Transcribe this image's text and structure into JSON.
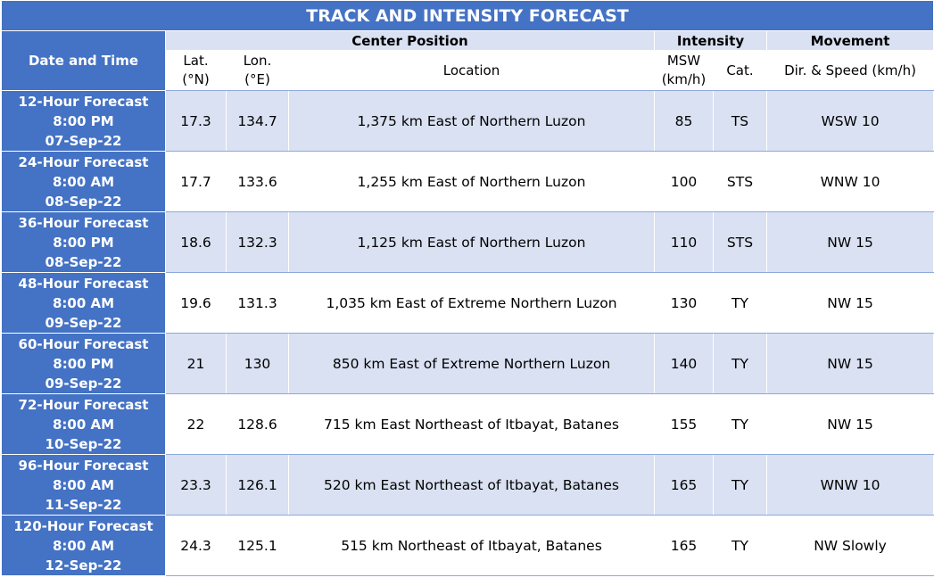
{
  "title": "TRACK AND INTENSITY FORECAST",
  "headers": {
    "date_time": "Date and Time",
    "center_position": "Center Position",
    "intensity": "Intensity",
    "movement": "Movement",
    "lat_1": "Lat.",
    "lat_2": "(°N)",
    "lon_1": "Lon.",
    "lon_2": "(°E)",
    "location": "Location",
    "msw_1": "MSW",
    "msw_2": "(km/h)",
    "cat": "Cat.",
    "dir_speed": "Dir. & Speed (km/h)"
  },
  "rows": [
    {
      "period": "12-Hour Forecast",
      "time": "8:00 PM",
      "date": "07-Sep-22",
      "lat": "17.3",
      "lon": "134.7",
      "location": "1,375 km East of Northern Luzon",
      "msw": "85",
      "cat": "TS",
      "movement": "WSW 10"
    },
    {
      "period": "24-Hour Forecast",
      "time": "8:00 AM",
      "date": "08-Sep-22",
      "lat": "17.7",
      "lon": "133.6",
      "location": "1,255 km East of Northern Luzon",
      "msw": "100",
      "cat": "STS",
      "movement": "WNW 10"
    },
    {
      "period": "36-Hour Forecast",
      "time": "8:00 PM",
      "date": "08-Sep-22",
      "lat": "18.6",
      "lon": "132.3",
      "location": "1,125 km East of Northern Luzon",
      "msw": "110",
      "cat": "STS",
      "movement": "NW 15"
    },
    {
      "period": "48-Hour Forecast",
      "time": "8:00 AM",
      "date": "09-Sep-22",
      "lat": "19.6",
      "lon": "131.3",
      "location": "1,035 km East of Extreme Northern Luzon",
      "msw": "130",
      "cat": "TY",
      "movement": "NW 15"
    },
    {
      "period": "60-Hour Forecast",
      "time": "8:00 PM",
      "date": "09-Sep-22",
      "lat": "21",
      "lon": "130",
      "location": "850 km East of Extreme Northern Luzon",
      "msw": "140",
      "cat": "TY",
      "movement": "NW 15"
    },
    {
      "period": "72-Hour Forecast",
      "time": "8:00 AM",
      "date": "10-Sep-22",
      "lat": "22",
      "lon": "128.6",
      "location": "715 km East Northeast of Itbayat, Batanes",
      "msw": "155",
      "cat": "TY",
      "movement": "NW 15"
    },
    {
      "period": "96-Hour Forecast",
      "time": "8:00 AM",
      "date": "11-Sep-22",
      "lat": "23.3",
      "lon": "126.1",
      "location": "520 km East Northeast of Itbayat, Batanes",
      "msw": "165",
      "cat": "TY",
      "movement": "WNW 10"
    },
    {
      "period": "120-Hour Forecast",
      "time": "8:00 AM",
      "date": "12-Sep-22",
      "lat": "24.3",
      "lon": "125.1",
      "location": "515 km Northeast of Itbayat, Batanes",
      "msw": "165",
      "cat": "TY",
      "movement": "NW Slowly"
    }
  ],
  "colors": {
    "header_blue": "#4472c4",
    "band_light": "#d9e1f2",
    "white": "#ffffff"
  }
}
